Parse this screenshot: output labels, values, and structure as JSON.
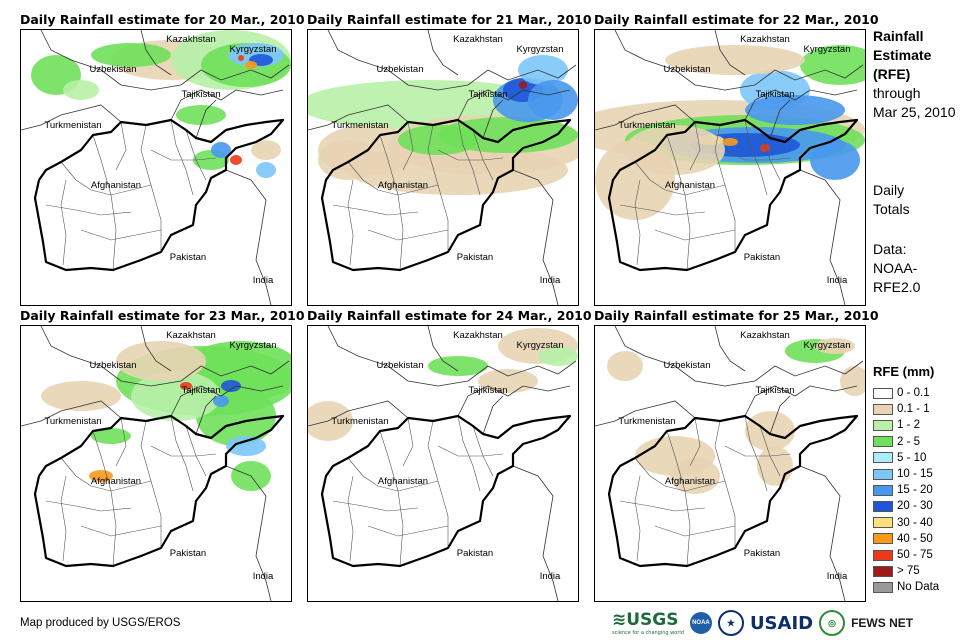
{
  "panels": [
    {
      "title": "Daily Rainfall estimate for 20 Mar., 2010",
      "labels": [
        "Kazakhstan",
        "Kyrgyzstan",
        "Uzbekistan",
        "Tajikistan",
        "Turkmenistan",
        "Afghanistan",
        "Pakistan",
        "India"
      ],
      "rain_level": "moderate-north"
    },
    {
      "title": "Daily Rainfall estimate for 21 Mar., 2010",
      "labels": [
        "Kazakhstan",
        "Kyrgyzstan",
        "Uzbekistan",
        "Tajikistan",
        "Turkmenistan",
        "Afghanistan",
        "Pakistan",
        "India"
      ],
      "rain_level": "widespread-light"
    },
    {
      "title": "Daily Rainfall estimate for 22 Mar., 2010",
      "labels": [
        "Kazakhstan",
        "Kyrgyzstan",
        "Uzbekistan",
        "Tajikistan",
        "Turkmenistan",
        "Afghanistan",
        "Pakistan",
        "India"
      ],
      "rain_level": "heavy-band"
    },
    {
      "title": "Daily Rainfall estimate for 23 Mar., 2010",
      "labels": [
        "Kazakhstan",
        "Kyrgyzstan",
        "Uzbekistan",
        "Tajikistan",
        "Turkmenistan",
        "Afghanistan",
        "Pakistan",
        "India"
      ],
      "rain_level": "moderate-northeast"
    },
    {
      "title": "Daily Rainfall estimate for 24 Mar., 2010",
      "labels": [
        "Kazakhstan",
        "Kyrgyzstan",
        "Uzbekistan",
        "Tajikistan",
        "Turkmenistan",
        "Afghanistan",
        "Pakistan",
        "India"
      ],
      "rain_level": "dry"
    },
    {
      "title": "Daily Rainfall estimate for 25 Mar., 2010",
      "labels": [
        "Kazakhstan",
        "Kyrgyzstan",
        "Uzbekistan",
        "Tajikistan",
        "Turkmenistan",
        "Afghanistan",
        "Pakistan",
        "India"
      ],
      "rain_level": "light-trace"
    }
  ],
  "sidebar": {
    "title_lines": [
      "Rainfall",
      "Estimate",
      "(RFE)"
    ],
    "through_lines": [
      "through",
      "Mar 25, 2010"
    ],
    "totals_lines": [
      "Daily",
      "Totals"
    ],
    "data_lines": [
      "Data:",
      "NOAA-",
      "RFE2.0"
    ]
  },
  "legend": {
    "title": "RFE (mm)",
    "items": [
      {
        "label": "0 - 0.1",
        "color": "#ffffff"
      },
      {
        "label": "0.1 - 1",
        "color": "#e8d4b4"
      },
      {
        "label": "1 - 2",
        "color": "#b8f0a8"
      },
      {
        "label": "2 - 5",
        "color": "#6fe05a"
      },
      {
        "label": "5 - 10",
        "color": "#a8eefa"
      },
      {
        "label": "10 - 15",
        "color": "#7cc6f8"
      },
      {
        "label": "15 - 20",
        "color": "#4898ee"
      },
      {
        "label": "20 - 30",
        "color": "#1f56d8"
      },
      {
        "label": "30 - 40",
        "color": "#fde07a"
      },
      {
        "label": "40 - 50",
        "color": "#f79a1c"
      },
      {
        "label": "50 - 75",
        "color": "#ec3a1a"
      },
      {
        "label": "> 75",
        "color": "#a01a1a"
      },
      {
        "label": "No Data",
        "color": "#999999"
      }
    ]
  },
  "footer": {
    "credit": "Map produced by USGS/EROS",
    "logos": {
      "usgs": "USGS",
      "usgs_tagline": "science for a changing world",
      "noaa": "NOAA",
      "usaid": "USAID",
      "fews": "FEWS NET"
    }
  }
}
